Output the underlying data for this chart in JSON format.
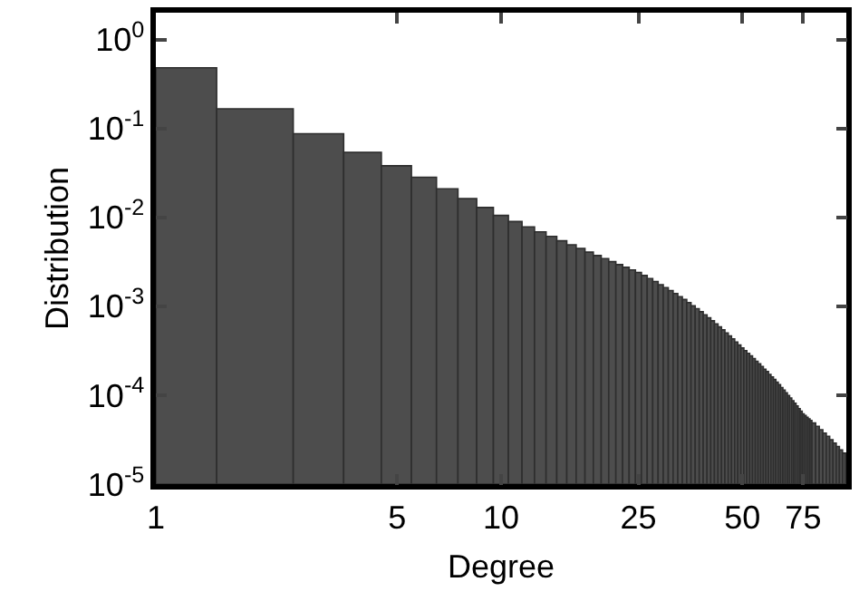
{
  "chart_data": {
    "type": "histogram",
    "xlabel": "Degree",
    "ylabel": "Distribution",
    "log": "xy",
    "color": "#4d4d4d",
    "bins": [
      1,
      1.5,
      2.5,
      3.5,
      4.5,
      5.5,
      6.5,
      7.5,
      8.5,
      9.5,
      10.5,
      11.5,
      12.5,
      13.5,
      14.5,
      15.5,
      16.5,
      17.5,
      18.5,
      19.5,
      20.5,
      21.5,
      22.5,
      23.5,
      24.5,
      25.5,
      26.5,
      27.5,
      28.5,
      29.5,
      30.5,
      31.5,
      32.5,
      33.5,
      34.5,
      35.5,
      36.5,
      37.5,
      38.5,
      39.5,
      40.5,
      41.5,
      42.5,
      43.5,
      44.5,
      45.5,
      46.5,
      47.5,
      48.5,
      49.5,
      50.5,
      51.5,
      52.5,
      53.5,
      54.5,
      55.5,
      56.5,
      57.5,
      58.5,
      59.5,
      60.5,
      61.5,
      62.5,
      63.5,
      64.5,
      65.5,
      66.5,
      67.5,
      68.5,
      69.5,
      70.5,
      71.5,
      72.5,
      73.5,
      74.5,
      75.5,
      76.5,
      77.5,
      78.5,
      79.5,
      81.5,
      83.5,
      85.5,
      87.5,
      89.5,
      91.5,
      93.5,
      95.5,
      97.5,
      99.5
    ],
    "values": [
      0.48,
      0.166,
      0.0871,
      0.0537,
      0.038,
      0.0282,
      0.0209,
      0.0162,
      0.0129,
      0.0105,
      0.00897,
      0.0078,
      0.00687,
      0.0061,
      0.00545,
      0.00491,
      0.00446,
      0.00406,
      0.00372,
      0.00343,
      0.00317,
      0.00294,
      0.00274,
      0.00256,
      0.0024,
      0.00222,
      0.00205,
      0.0019,
      0.00175,
      0.00162,
      0.0015,
      0.00139,
      0.00128,
      0.00119,
      0.0011,
      0.00101,
      0.000938,
      0.000867,
      0.000802,
      0.000741,
      0.000685,
      0.000634,
      0.000586,
      0.000542,
      0.000501,
      0.000463,
      0.000429,
      0.000396,
      0.000366,
      0.000339,
      0.000317,
      0.000296,
      0.000276,
      0.000258,
      0.000241,
      0.000225,
      0.00021,
      0.000196,
      0.000184,
      0.000171,
      0.00016,
      0.00015,
      0.00014,
      0.000131,
      0.000122,
      0.000114,
      0.000106,
      9.93e-05,
      9.29e-05,
      8.67e-05,
      8.1e-05,
      7.57e-05,
      7.07e-05,
      6.61e-05,
      6.17e-05,
      5.9e-05,
      5.65e-05,
      5.42e-05,
      5.19e-05,
      4.86e-05,
      4.46e-05,
      4.09e-05,
      3.75e-05,
      3.45e-05,
      3.15e-05,
      2.89e-05,
      2.65e-05,
      2.43e-05,
      2.23e-05
    ],
    "xlim": [
      1,
      100
    ],
    "xticks": [
      1,
      5,
      10,
      25,
      50,
      75
    ],
    "ylim": [
      1e-05,
      2
    ],
    "yticks": [
      {
        "value": 1,
        "label": "10$^{0}$"
      },
      {
        "value": 0.1,
        "label": "10$^{-1}$"
      },
      {
        "value": 0.01,
        "label": "10$^{-2}$"
      },
      {
        "value": 0.001,
        "label": "10$^{-3}$"
      },
      {
        "value": 0.0001,
        "label": "10$^{-4}$"
      },
      {
        "value": 1e-05,
        "label": "10$^{-5}$"
      }
    ]
  }
}
